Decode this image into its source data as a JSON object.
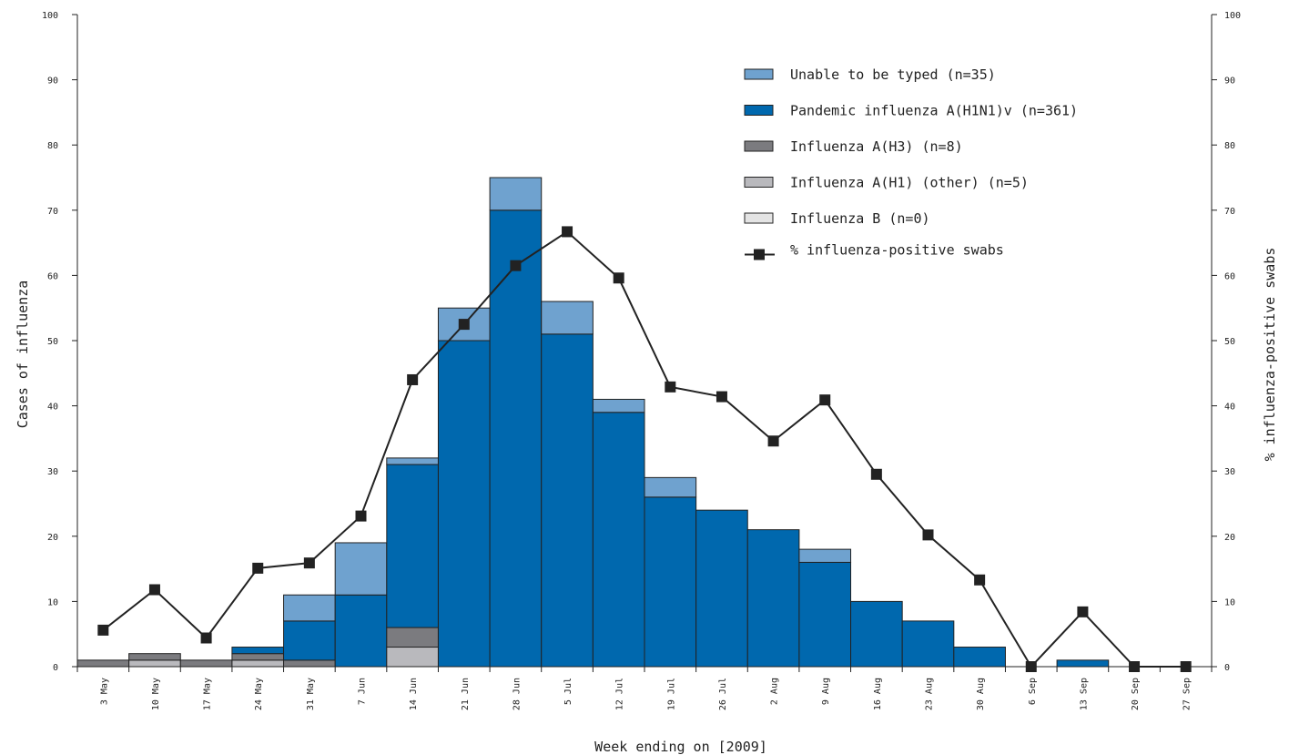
{
  "chart_data": {
    "type": "bar",
    "stacked": true,
    "categories": [
      "3 May",
      "10 May",
      "17 May",
      "24 May",
      "31 May",
      "7 Jun",
      "14 Jun",
      "21 Jun",
      "28 Jun",
      "5 Jul",
      "12 Jul",
      "19 Jul",
      "26 Jul",
      "2 Aug",
      "9 Aug",
      "16 Aug",
      "23 Aug",
      "30 Aug",
      "6 Sep",
      "13 Sep",
      "20 Sep",
      "27 Sep"
    ],
    "xlabel": "Week ending on [2009]",
    "ylabel": "Cases of influenza",
    "ylabel_right": "% influenza-positive swabs",
    "ylim": [
      0,
      100
    ],
    "ylim_right": [
      0,
      100
    ],
    "yticks": [
      0,
      10,
      20,
      30,
      40,
      50,
      60,
      70,
      80,
      90,
      100
    ],
    "grid": false,
    "legend_position": "top-right",
    "series": [
      {
        "name": "Influenza B (n=0)",
        "color": "#e4e4e4",
        "values": [
          0,
          0,
          0,
          0,
          0,
          0,
          0,
          0,
          0,
          0,
          0,
          0,
          0,
          0,
          0,
          0,
          0,
          0,
          0,
          0,
          0,
          0
        ]
      },
      {
        "name": "Influenza A(H1) (other) (n=5)",
        "color": "#b9b9bd",
        "values": [
          0,
          1,
          0,
          1,
          0,
          0,
          3,
          0,
          0,
          0,
          0,
          0,
          0,
          0,
          0,
          0,
          0,
          0,
          0,
          0,
          0,
          0
        ]
      },
      {
        "name": "Influenza A(H3) (n=8)",
        "color": "#7b7b7f",
        "values": [
          1,
          1,
          1,
          1,
          1,
          0,
          3,
          0,
          0,
          0,
          0,
          0,
          0,
          0,
          0,
          0,
          0,
          0,
          0,
          0,
          0,
          0
        ]
      },
      {
        "name": "Pandemic influenza A(H1N1)v (n=361)",
        "color": "#0068ae",
        "values": [
          0,
          0,
          0,
          1,
          6,
          11,
          25,
          50,
          70,
          51,
          39,
          26,
          24,
          21,
          16,
          10,
          7,
          3,
          0,
          1,
          0,
          0
        ]
      },
      {
        "name": "Unable to be typed (n=35)",
        "color": "#6fa2cf",
        "values": [
          0,
          0,
          0,
          0,
          4,
          8,
          1,
          5,
          5,
          5,
          2,
          3,
          0,
          0,
          2,
          0,
          0,
          0,
          0,
          0,
          0,
          0
        ]
      }
    ],
    "line_series": {
      "name": "% influenza-positive swabs",
      "axis": "right",
      "color": "#222222",
      "values": [
        5.6,
        11.8,
        4.4,
        15.1,
        15.9,
        23.1,
        44.0,
        52.5,
        61.5,
        66.7,
        59.6,
        42.9,
        41.4,
        34.6,
        40.9,
        29.5,
        20.2,
        13.3,
        0,
        8.4,
        0,
        0
      ]
    }
  }
}
